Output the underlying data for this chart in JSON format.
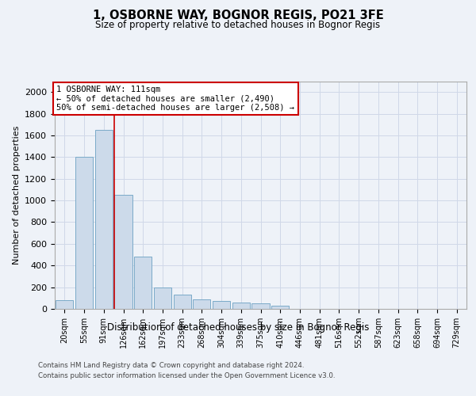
{
  "title1": "1, OSBORNE WAY, BOGNOR REGIS, PO21 3FE",
  "title2": "Size of property relative to detached houses in Bognor Regis",
  "xlabel": "Distribution of detached houses by size in Bognor Regis",
  "ylabel": "Number of detached properties",
  "footer1": "Contains HM Land Registry data © Crown copyright and database right 2024.",
  "footer2": "Contains public sector information licensed under the Open Government Licence v3.0.",
  "bar_labels": [
    "20sqm",
    "55sqm",
    "91sqm",
    "126sqm",
    "162sqm",
    "197sqm",
    "233sqm",
    "268sqm",
    "304sqm",
    "339sqm",
    "375sqm",
    "410sqm",
    "446sqm",
    "481sqm",
    "516sqm",
    "552sqm",
    "587sqm",
    "623sqm",
    "658sqm",
    "694sqm",
    "729sqm"
  ],
  "bar_values": [
    80,
    1400,
    1650,
    1050,
    480,
    200,
    130,
    90,
    75,
    60,
    50,
    30,
    0,
    0,
    0,
    0,
    0,
    0,
    0,
    0,
    0
  ],
  "bar_color": "#ccdaea",
  "bar_edge_color": "#7aaac8",
  "ylim": [
    0,
    2100
  ],
  "yticks": [
    0,
    200,
    400,
    600,
    800,
    1000,
    1200,
    1400,
    1600,
    1800,
    2000
  ],
  "grid_color": "#d0d8e8",
  "annotation_line1": "1 OSBORNE WAY: 111sqm",
  "annotation_line2": "← 50% of detached houses are smaller (2,490)",
  "annotation_line3": "50% of semi-detached houses are larger (2,508) →",
  "vline_x_index": 2.55,
  "vline_color": "#cc0000",
  "annotation_box_color": "#ffffff",
  "annotation_box_edgecolor": "#cc0000",
  "background_color": "#eef2f8"
}
